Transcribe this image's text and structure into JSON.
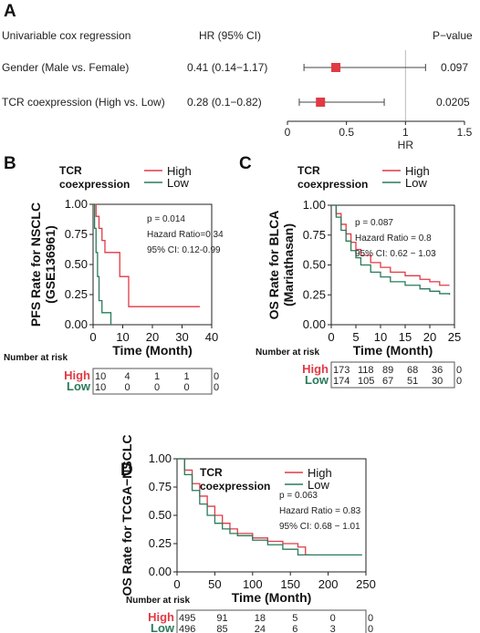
{
  "colors": {
    "high": "#e03a45",
    "low": "#2a7a5a",
    "marker": "#e03a45"
  },
  "chart_data": [
    {
      "panel": "A",
      "type": "forest",
      "title": "Univariable cox regression",
      "col_hr": "HR (95% CI)",
      "col_p": "P−value",
      "rows": [
        {
          "label": "Gender (Male vs. Female)",
          "hr_text": "0.41 (0.14−1.17)",
          "hr": 0.41,
          "lo": 0.14,
          "hi": 1.17,
          "p": "0.097"
        },
        {
          "label": "TCR coexpression (High vs. Low)",
          "hr_text": "0.28 (0.1−0.82)",
          "hr": 0.28,
          "lo": 0.1,
          "hi": 0.82,
          "p": "0.0205"
        }
      ],
      "xlim": [
        0,
        1.5
      ],
      "xticks": [
        0,
        0.5,
        1,
        1.5
      ],
      "xtick_labels": [
        "0",
        "0.5",
        "1",
        "1.5"
      ],
      "ref_line": 1,
      "xlabel": "HR"
    },
    {
      "panel": "B",
      "type": "line",
      "ylabel": "PFS Rate for NSCLC\n(GSE136961)",
      "xlabel": "Time (Month)",
      "xlim": [
        0,
        40
      ],
      "ylim": [
        0,
        1
      ],
      "xticks": [
        0,
        10,
        20,
        30,
        40
      ],
      "xtick_labels": [
        "0",
        "10",
        "20",
        "30",
        "40"
      ],
      "yticks": [
        0,
        0.25,
        0.5,
        0.75,
        1
      ],
      "ytick_labels": [
        "0.00",
        "0.25",
        "0.50",
        "0.75",
        "1.00"
      ],
      "legend_title": "TCR\ncoexpression",
      "series": [
        {
          "name": "High",
          "x": [
            0,
            1,
            2,
            3,
            4,
            6,
            9,
            12,
            36
          ],
          "y": [
            1,
            0.9,
            0.8,
            0.7,
            0.6,
            0.6,
            0.4,
            0.15,
            0.15
          ]
        },
        {
          "name": "Low",
          "x": [
            0,
            0.5,
            1,
            1.5,
            2,
            3,
            6
          ],
          "y": [
            1,
            0.8,
            0.6,
            0.4,
            0.2,
            0.1,
            0
          ]
        }
      ],
      "annotations": [
        "p = 0.014",
        "Hazard Ratio=0.34",
        "95% CI: 0.12-0.99"
      ],
      "risk_table": {
        "header": "Number at risk",
        "rows": [
          {
            "group": "High",
            "values": [
              "10",
              "4",
              "1",
              "1",
              "0"
            ]
          },
          {
            "group": "Low",
            "values": [
              "10",
              "0",
              "0",
              "0",
              "0"
            ]
          }
        ]
      }
    },
    {
      "panel": "C",
      "type": "line",
      "ylabel": "OS Rate for BLCA\n(Mariathasan)",
      "xlabel": "Time (Month)",
      "xlim": [
        0,
        25
      ],
      "ylim": [
        0,
        1
      ],
      "xticks": [
        0,
        5,
        10,
        15,
        20,
        25
      ],
      "xtick_labels": [
        "0",
        "5",
        "10",
        "15",
        "20",
        "25"
      ],
      "yticks": [
        0,
        0.25,
        0.5,
        0.75,
        1
      ],
      "ytick_labels": [
        "0.00",
        "0.25",
        "0.50",
        "0.75",
        "1.00"
      ],
      "legend_title": "TCR\ncoexpression",
      "series": [
        {
          "name": "High",
          "x": [
            0,
            1,
            2,
            3,
            4,
            5,
            6,
            8,
            10,
            12,
            15,
            18,
            20,
            22,
            24
          ],
          "y": [
            1,
            0.93,
            0.84,
            0.76,
            0.69,
            0.63,
            0.58,
            0.52,
            0.48,
            0.44,
            0.41,
            0.38,
            0.36,
            0.33,
            0.33
          ]
        },
        {
          "name": "Low",
          "x": [
            0,
            1,
            2,
            3,
            4,
            5,
            6,
            8,
            10,
            12,
            15,
            18,
            20,
            22,
            24
          ],
          "y": [
            1,
            0.9,
            0.79,
            0.7,
            0.62,
            0.56,
            0.5,
            0.44,
            0.4,
            0.36,
            0.33,
            0.3,
            0.28,
            0.26,
            0.25
          ]
        }
      ],
      "annotations": [
        "p = 0.087",
        "Hazard Ratio = 0.8",
        "95% CI: 0.62 − 1.03"
      ],
      "risk_table": {
        "header": "Number at risk",
        "rows": [
          {
            "group": "High",
            "values": [
              "173",
              "118",
              "89",
              "68",
              "36",
              "0"
            ]
          },
          {
            "group": "Low",
            "values": [
              "174",
              "105",
              "67",
              "51",
              "30",
              "0"
            ]
          }
        ]
      }
    },
    {
      "panel": "D",
      "type": "line",
      "ylabel": "OS Rate for TCGA−NSCLC",
      "xlabel": "Time (Month)",
      "xlim": [
        0,
        250
      ],
      "ylim": [
        0,
        1
      ],
      "xticks": [
        0,
        50,
        100,
        150,
        200,
        250
      ],
      "xtick_labels": [
        "0",
        "50",
        "100",
        "150",
        "200",
        "250"
      ],
      "yticks": [
        0,
        0.25,
        0.5,
        0.75,
        1
      ],
      "ytick_labels": [
        "0.00",
        "0.25",
        "0.50",
        "0.75",
        "1.00"
      ],
      "legend_title": "TCR\ncoexpression",
      "series": [
        {
          "name": "High",
          "x": [
            0,
            10,
            20,
            30,
            40,
            50,
            60,
            70,
            80,
            100,
            120,
            140,
            160,
            170,
            175
          ],
          "y": [
            1,
            0.9,
            0.78,
            0.67,
            0.58,
            0.5,
            0.43,
            0.38,
            0.34,
            0.3,
            0.27,
            0.25,
            0.22,
            0.15,
            0.15
          ]
        },
        {
          "name": "Low",
          "x": [
            0,
            10,
            20,
            30,
            40,
            50,
            60,
            70,
            80,
            100,
            120,
            140,
            160,
            200,
            245
          ],
          "y": [
            1,
            0.86,
            0.72,
            0.6,
            0.5,
            0.43,
            0.38,
            0.34,
            0.32,
            0.28,
            0.24,
            0.2,
            0.15,
            0.15,
            0.15
          ]
        }
      ],
      "annotations": [
        "p = 0.063",
        "Hazard Ratio = 0.83",
        "95% CI: 0.68 − 1.01"
      ],
      "risk_table": {
        "header": "Number at risk",
        "rows": [
          {
            "group": "High",
            "values": [
              "495",
              "91",
              "18",
              "5",
              "0",
              "0"
            ]
          },
          {
            "group": "Low",
            "values": [
              "496",
              "85",
              "24",
              "6",
              "3",
              "0"
            ]
          }
        ]
      }
    }
  ]
}
